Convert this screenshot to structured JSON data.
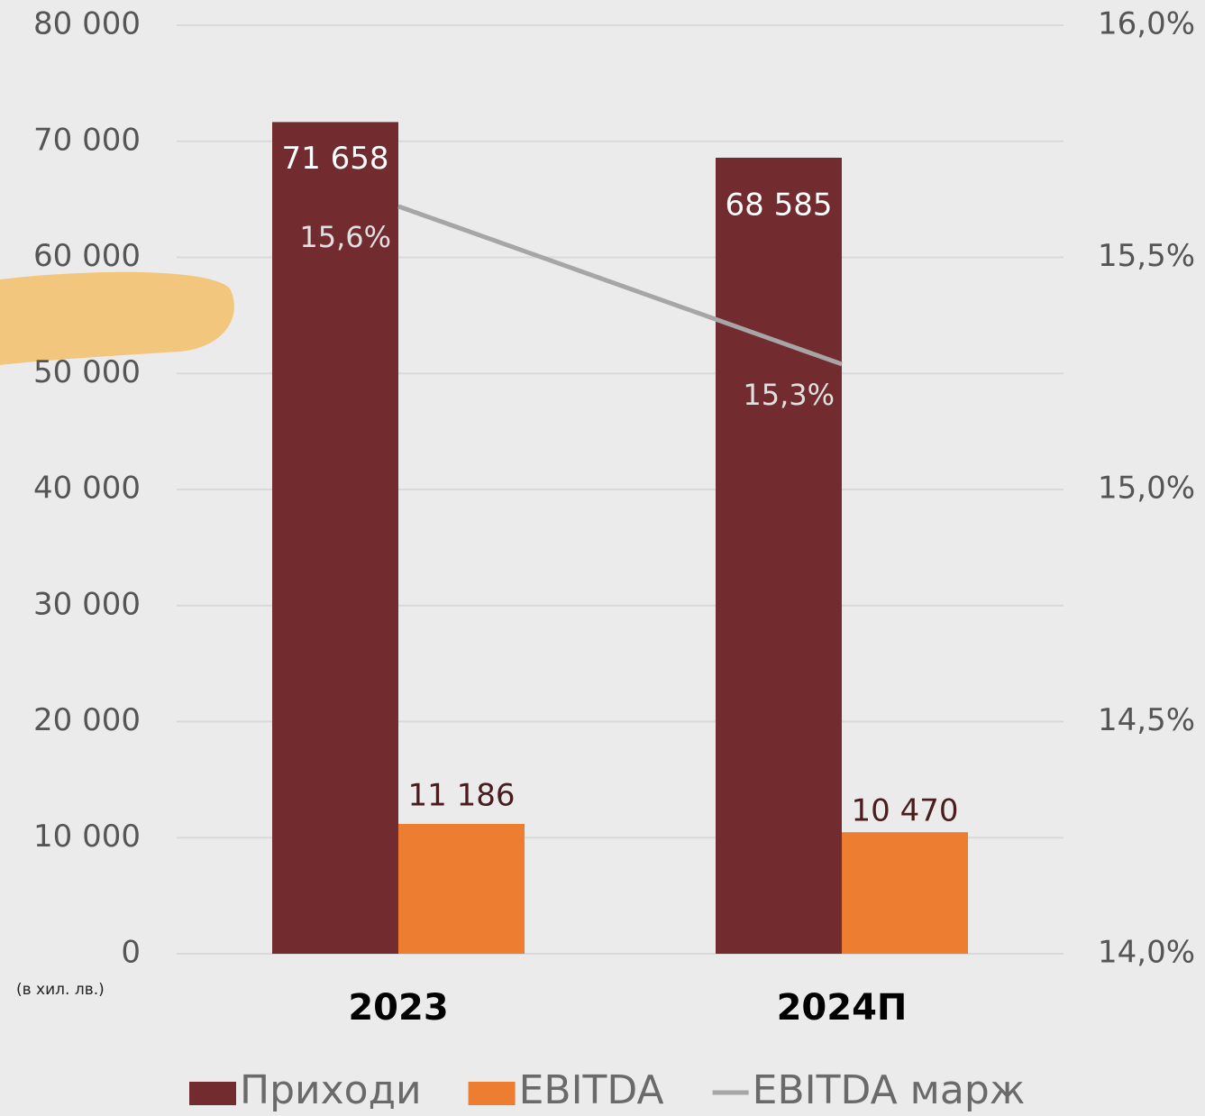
{
  "chart_data": {
    "type": "bar",
    "y_axis_note": "(в хил. лв.)",
    "categories": [
      "2023",
      "2024П"
    ],
    "series": [
      {
        "name": "Приходи",
        "type": "bar",
        "color": "#722b2e",
        "values": [
          71658,
          68585
        ],
        "value_labels": [
          "71 658",
          "68 585"
        ]
      },
      {
        "name": "EBITDA",
        "type": "bar",
        "color": "#ed7d31",
        "values": [
          11186,
          10470
        ],
        "value_labels": [
          "11 186",
          "10 470"
        ]
      },
      {
        "name": "EBITDA марж",
        "type": "line",
        "axis": "y2",
        "color": "#a6a6a6",
        "values": [
          15.61,
          15.27
        ],
        "value_labels": [
          "15,6%",
          "15,3%"
        ]
      }
    ],
    "ylim": [
      0,
      80000
    ],
    "yticks": [
      0,
      {
        "value": 10000,
        "label": "10 000"
      },
      {
        "value": 20000,
        "label": "20 000"
      },
      {
        "value": 30000,
        "label": "30 000"
      },
      {
        "value": 40000,
        "label": "40 000"
      },
      {
        "value": 50000,
        "label": "50 000"
      },
      {
        "value": 60000,
        "label": "60 000"
      },
      {
        "value": 70000,
        "label": "70 000"
      },
      {
        "value": 80000,
        "label": "80 000"
      }
    ],
    "y2lim": [
      14,
      16
    ],
    "y2ticks": [
      {
        "value": 14,
        "label": "14,0%"
      },
      {
        "value": 14.5,
        "label": "14,5%"
      },
      {
        "value": 15,
        "label": "15,0%"
      },
      {
        "value": 15.5,
        "label": "15,5%"
      },
      {
        "value": 16,
        "label": "16,0%"
      }
    ],
    "grid": true,
    "legend": "bottom"
  }
}
